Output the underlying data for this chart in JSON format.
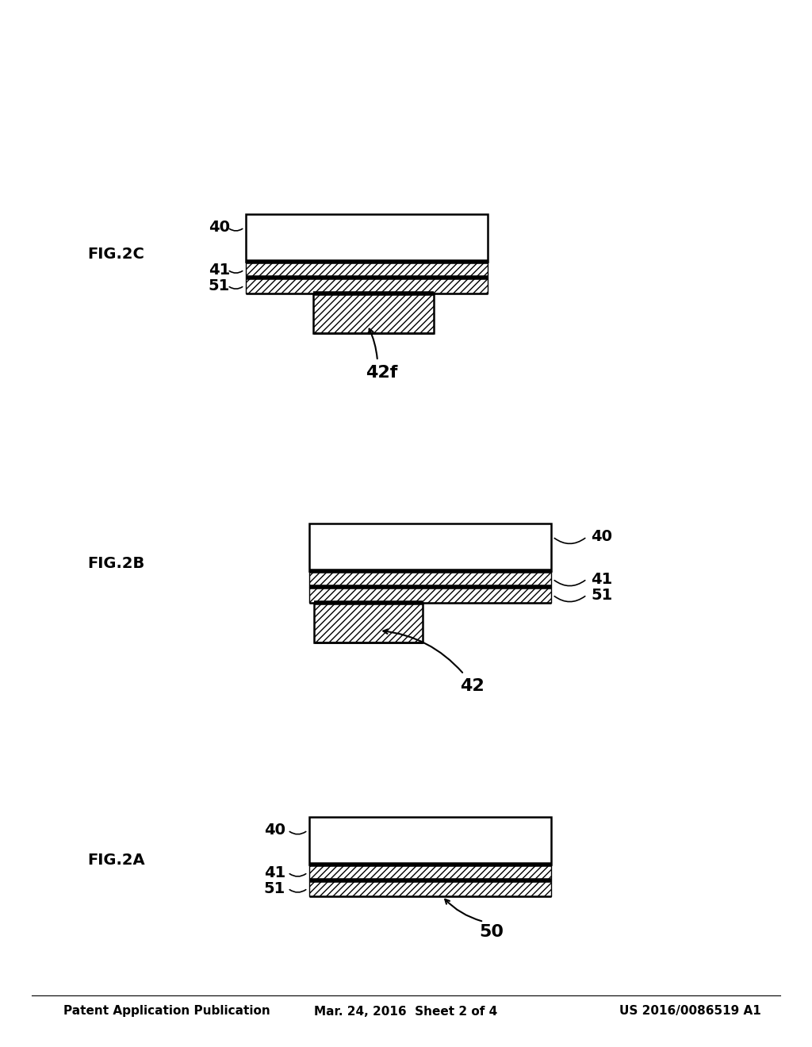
{
  "header_left": "Patent Application Publication",
  "header_mid": "Mar. 24, 2016  Sheet 2 of 4",
  "header_right": "US 2016/0086519 A1",
  "bg_color": "#ffffff",
  "line_color": "#000000"
}
